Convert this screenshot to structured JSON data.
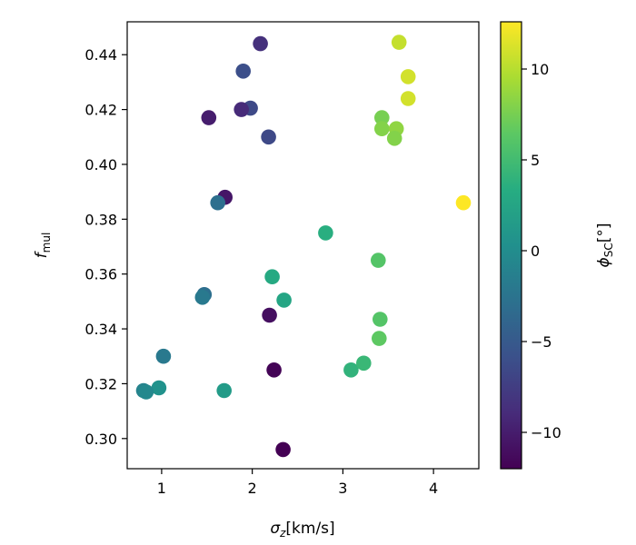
{
  "chart_data": {
    "type": "scatter",
    "title": "",
    "xlabel_base": "σ",
    "xlabel_sub": "z",
    "xlabel_rest": "[km/s]",
    "ylabel_base": "f",
    "ylabel_sub": "mul",
    "colorbar_label_base": "ϕ",
    "colorbar_label_sub": "SC",
    "colorbar_label_rest": "[°]",
    "xlim": [
      0.62,
      4.5
    ],
    "ylim": [
      0.289,
      0.452
    ],
    "clim": [
      -12,
      12.6
    ],
    "colormap": "viridis",
    "grid": false,
    "x_ticks": [
      1,
      2,
      3,
      4
    ],
    "x_tick_labels": [
      "1",
      "2",
      "3",
      "4"
    ],
    "y_ticks": [
      0.3,
      0.32,
      0.34,
      0.36,
      0.38,
      0.4,
      0.42,
      0.44
    ],
    "y_tick_labels": [
      "0.30",
      "0.32",
      "0.34",
      "0.36",
      "0.38",
      "0.40",
      "0.42",
      "0.44"
    ],
    "c_ticks": [
      -10,
      -5,
      0,
      5,
      10
    ],
    "c_tick_labels": [
      "−10",
      "−5",
      "0",
      "5",
      "10"
    ],
    "points": [
      {
        "x": 2.09,
        "y": 0.444,
        "c": -8.5
      },
      {
        "x": 1.9,
        "y": 0.434,
        "c": -6.0
      },
      {
        "x": 1.98,
        "y": 0.4205,
        "c": -6.5
      },
      {
        "x": 1.88,
        "y": 0.42,
        "c": -9.0
      },
      {
        "x": 2.18,
        "y": 0.41,
        "c": -6.5
      },
      {
        "x": 1.52,
        "y": 0.417,
        "c": -10.0
      },
      {
        "x": 1.7,
        "y": 0.388,
        "c": -10.5
      },
      {
        "x": 1.62,
        "y": 0.386,
        "c": -3.0
      },
      {
        "x": 1.47,
        "y": 0.3525,
        "c": -3.0
      },
      {
        "x": 1.45,
        "y": 0.3515,
        "c": -2.0
      },
      {
        "x": 1.02,
        "y": 0.33,
        "c": -2.0
      },
      {
        "x": 0.97,
        "y": 0.3185,
        "c": 0.5
      },
      {
        "x": 0.8,
        "y": 0.3175,
        "c": -1.0
      },
      {
        "x": 0.83,
        "y": 0.317,
        "c": -0.5
      },
      {
        "x": 1.69,
        "y": 0.3175,
        "c": 1.5
      },
      {
        "x": 2.19,
        "y": 0.345,
        "c": -11.0
      },
      {
        "x": 2.24,
        "y": 0.325,
        "c": -11.8
      },
      {
        "x": 2.34,
        "y": 0.296,
        "c": -12.0
      },
      {
        "x": 2.22,
        "y": 0.359,
        "c": 3.0
      },
      {
        "x": 2.35,
        "y": 0.3505,
        "c": 2.5
      },
      {
        "x": 2.81,
        "y": 0.375,
        "c": 3.5
      },
      {
        "x": 3.09,
        "y": 0.325,
        "c": 4.0
      },
      {
        "x": 3.23,
        "y": 0.3275,
        "c": 4.5
      },
      {
        "x": 3.39,
        "y": 0.365,
        "c": 6.0
      },
      {
        "x": 3.41,
        "y": 0.3435,
        "c": 6.0
      },
      {
        "x": 3.4,
        "y": 0.3365,
        "c": 6.5
      },
      {
        "x": 3.62,
        "y": 0.4445,
        "c": 10.5
      },
      {
        "x": 3.72,
        "y": 0.432,
        "c": 11.0
      },
      {
        "x": 3.72,
        "y": 0.424,
        "c": 11.0
      },
      {
        "x": 3.43,
        "y": 0.417,
        "c": 7.5
      },
      {
        "x": 3.43,
        "y": 0.413,
        "c": 8.0
      },
      {
        "x": 3.59,
        "y": 0.413,
        "c": 8.5
      },
      {
        "x": 3.57,
        "y": 0.4095,
        "c": 8.0
      },
      {
        "x": 4.33,
        "y": 0.386,
        "c": 12.6
      }
    ]
  }
}
